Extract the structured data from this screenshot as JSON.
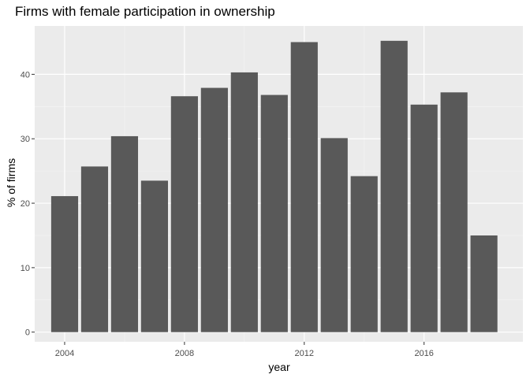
{
  "chart_data": {
    "type": "bar",
    "title": "Firms with female participation in ownership",
    "xlabel": "year",
    "ylabel": "% of firms",
    "x": [
      2004,
      2005,
      2006,
      2007,
      2008,
      2009,
      2010,
      2011,
      2012,
      2013,
      2014,
      2015,
      2016,
      2017,
      2018
    ],
    "values": [
      21.1,
      25.7,
      30.4,
      23.5,
      36.6,
      37.9,
      40.3,
      36.8,
      45.0,
      30.1,
      24.2,
      45.2,
      35.3,
      37.2,
      15.0
    ],
    "xlim": [
      2003,
      2019.3
    ],
    "ylim": [
      -1.5,
      47.5
    ],
    "xticks": [
      2004,
      2008,
      2012,
      2016
    ],
    "yticks": [
      0,
      10,
      20,
      30,
      40
    ],
    "grid": true,
    "colors": {
      "bar": "#595959",
      "panel": "#ebebeb",
      "grid_major": "#ffffff",
      "grid_minor": "#f5f5f5",
      "tick_label": "#4d4d4d",
      "tick_mark": "#333333"
    }
  }
}
